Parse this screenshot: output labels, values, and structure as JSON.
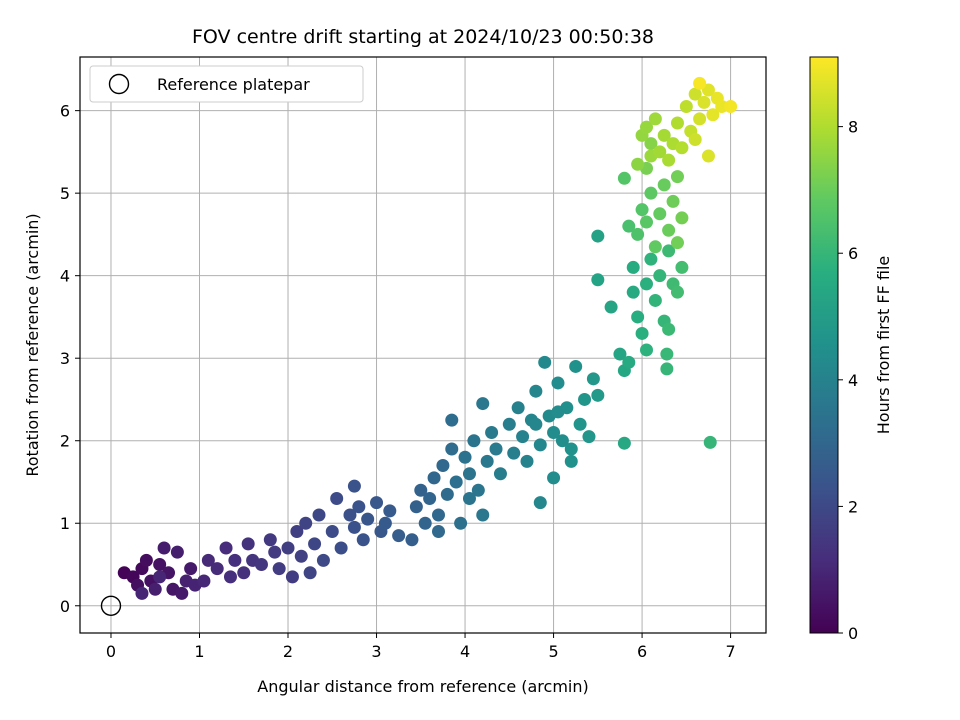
{
  "chart_data": {
    "type": "scatter",
    "title": "FOV centre drift starting at 2024/10/23 00:50:38",
    "xlabel": "Angular distance from reference (arcmin)",
    "ylabel": "Rotation from reference (arcmin)",
    "xlim": [
      -0.35,
      7.4
    ],
    "ylim": [
      -0.33,
      6.65
    ],
    "xticks": [
      "0",
      "1",
      "2",
      "3",
      "4",
      "5",
      "6",
      "7"
    ],
    "yticks": [
      "0",
      "1",
      "2",
      "3",
      "4",
      "5",
      "6"
    ],
    "grid": true,
    "legend": {
      "placement": "top-left",
      "entries": [
        "Reference platepar"
      ]
    },
    "reference_point": {
      "x": 0,
      "y": 0
    },
    "colorbar": {
      "label": "Hours from first FF file",
      "range": [
        0,
        9.1
      ],
      "ticks": [
        "0",
        "2",
        "4",
        "6",
        "8"
      ],
      "colormap": "viridis"
    },
    "points": [
      [
        0.15,
        0.4,
        0.05
      ],
      [
        0.25,
        0.35,
        0.12
      ],
      [
        0.35,
        0.45,
        0.2
      ],
      [
        0.4,
        0.55,
        0.3
      ],
      [
        0.3,
        0.25,
        0.35
      ],
      [
        0.45,
        0.3,
        0.4
      ],
      [
        0.55,
        0.5,
        0.45
      ],
      [
        0.65,
        0.4,
        0.5
      ],
      [
        0.7,
        0.2,
        0.55
      ],
      [
        0.8,
        0.15,
        0.6
      ],
      [
        0.9,
        0.45,
        0.65
      ],
      [
        0.6,
        0.7,
        0.7
      ],
      [
        0.75,
        0.65,
        0.75
      ],
      [
        0.5,
        0.2,
        0.8
      ],
      [
        0.85,
        0.3,
        0.85
      ],
      [
        0.95,
        0.25,
        0.9
      ],
      [
        0.35,
        0.15,
        0.92
      ],
      [
        0.55,
        0.35,
        0.95
      ],
      [
        1.05,
        0.3,
        1.0
      ],
      [
        1.1,
        0.55,
        1.05
      ],
      [
        1.2,
        0.45,
        1.1
      ],
      [
        1.3,
        0.7,
        1.15
      ],
      [
        1.4,
        0.55,
        1.2
      ],
      [
        1.5,
        0.4,
        1.25
      ],
      [
        1.55,
        0.75,
        1.3
      ],
      [
        1.6,
        0.55,
        1.35
      ],
      [
        1.7,
        0.5,
        1.4
      ],
      [
        1.8,
        0.8,
        1.5
      ],
      [
        1.85,
        0.65,
        1.55
      ],
      [
        1.9,
        0.45,
        1.6
      ],
      [
        2.0,
        0.7,
        1.65
      ],
      [
        2.1,
        0.9,
        1.7
      ],
      [
        2.15,
        0.6,
        1.75
      ],
      [
        2.2,
        1.0,
        1.8
      ],
      [
        2.25,
        0.4,
        1.85
      ],
      [
        2.3,
        0.75,
        1.9
      ],
      [
        2.35,
        1.1,
        1.95
      ],
      [
        2.4,
        0.55,
        2.0
      ],
      [
        2.5,
        0.9,
        2.05
      ],
      [
        2.55,
        1.3,
        2.1
      ],
      [
        2.6,
        0.7,
        2.15
      ],
      [
        2.7,
        1.1,
        2.2
      ],
      [
        2.75,
        0.95,
        2.25
      ],
      [
        2.8,
        1.2,
        2.3
      ],
      [
        2.85,
        0.8,
        2.35
      ],
      [
        2.9,
        1.05,
        2.4
      ],
      [
        3.0,
        1.25,
        2.45
      ],
      [
        3.05,
        0.9,
        2.5
      ],
      [
        3.1,
        1.0,
        2.55
      ],
      [
        3.15,
        1.15,
        2.6
      ],
      [
        3.25,
        0.85,
        2.65
      ],
      [
        1.35,
        0.35,
        1.2
      ],
      [
        2.05,
        0.35,
        1.6
      ],
      [
        2.75,
        1.45,
        2.3
      ],
      [
        3.4,
        0.8,
        2.7
      ],
      [
        3.45,
        1.2,
        2.8
      ],
      [
        3.5,
        1.4,
        2.85
      ],
      [
        3.55,
        1.0,
        2.9
      ],
      [
        3.6,
        1.3,
        2.95
      ],
      [
        3.65,
        1.55,
        3.0
      ],
      [
        3.7,
        1.1,
        3.05
      ],
      [
        3.75,
        1.7,
        3.1
      ],
      [
        3.8,
        1.35,
        3.15
      ],
      [
        3.85,
        1.9,
        3.2
      ],
      [
        3.85,
        2.25,
        3.25
      ],
      [
        3.9,
        1.5,
        3.3
      ],
      [
        3.95,
        1.0,
        3.35
      ],
      [
        4.0,
        1.8,
        3.4
      ],
      [
        4.05,
        1.6,
        3.45
      ],
      [
        4.1,
        2.0,
        3.5
      ],
      [
        4.15,
        1.4,
        3.55
      ],
      [
        4.2,
        2.45,
        3.6
      ],
      [
        4.25,
        1.75,
        3.65
      ],
      [
        4.3,
        2.1,
        3.7
      ],
      [
        4.35,
        1.9,
        3.75
      ],
      [
        4.4,
        1.6,
        3.8
      ],
      [
        4.5,
        2.2,
        3.85
      ],
      [
        4.55,
        1.85,
        3.9
      ],
      [
        4.6,
        2.4,
        3.95
      ],
      [
        4.2,
        1.1,
        3.6
      ],
      [
        3.7,
        0.9,
        3.1
      ],
      [
        4.05,
        1.3,
        3.5
      ],
      [
        4.65,
        2.05,
        4.0
      ],
      [
        4.7,
        1.75,
        4.05
      ],
      [
        4.75,
        2.25,
        4.1
      ],
      [
        4.8,
        2.6,
        4.15
      ],
      [
        4.85,
        1.95,
        4.2
      ],
      [
        4.85,
        1.25,
        4.2
      ],
      [
        4.9,
        2.95,
        4.25
      ],
      [
        4.95,
        2.3,
        4.3
      ],
      [
        5.0,
        2.1,
        4.35
      ],
      [
        5.0,
        1.55,
        4.35
      ],
      [
        5.05,
        2.7,
        4.4
      ],
      [
        5.1,
        2.0,
        4.45
      ],
      [
        5.15,
        2.4,
        4.5
      ],
      [
        5.2,
        1.9,
        4.55
      ],
      [
        5.2,
        1.75,
        4.55
      ],
      [
        5.25,
        2.9,
        4.6
      ],
      [
        5.3,
        2.2,
        4.65
      ],
      [
        5.35,
        2.5,
        4.7
      ],
      [
        5.4,
        2.05,
        4.75
      ],
      [
        5.45,
        2.75,
        4.8
      ],
      [
        5.5,
        2.55,
        4.85
      ],
      [
        4.8,
        2.2,
        4.15
      ],
      [
        5.05,
        2.35,
        4.4
      ],
      [
        5.5,
        4.48,
        5.2
      ],
      [
        5.5,
        3.95,
        5.25
      ],
      [
        5.65,
        3.62,
        5.3
      ],
      [
        5.75,
        3.05,
        5.35
      ],
      [
        5.8,
        2.85,
        5.4
      ],
      [
        5.8,
        1.97,
        5.45
      ],
      [
        5.85,
        2.95,
        5.5
      ],
      [
        5.9,
        3.8,
        5.55
      ],
      [
        5.9,
        4.1,
        5.6
      ],
      [
        5.95,
        3.5,
        5.65
      ],
      [
        6.0,
        3.3,
        5.7
      ],
      [
        6.05,
        3.9,
        5.75
      ],
      [
        6.05,
        3.1,
        5.8
      ],
      [
        6.1,
        4.2,
        5.85
      ],
      [
        6.15,
        3.7,
        5.9
      ],
      [
        6.2,
        4.0,
        5.95
      ],
      [
        6.25,
        3.45,
        6.0
      ],
      [
        6.28,
        3.05,
        6.05
      ],
      [
        6.3,
        3.35,
        6.1
      ],
      [
        6.3,
        4.3,
        6.15
      ],
      [
        6.35,
        3.9,
        6.2
      ],
      [
        6.4,
        3.8,
        6.25
      ],
      [
        6.45,
        4.1,
        6.3
      ],
      [
        6.77,
        1.98,
        6.0
      ],
      [
        6.28,
        2.87,
        6.0
      ],
      [
        5.85,
        4.6,
        6.4
      ],
      [
        5.8,
        5.18,
        6.6
      ],
      [
        5.95,
        4.5,
        6.5
      ],
      [
        6.0,
        4.8,
        6.6
      ],
      [
        6.05,
        4.65,
        6.7
      ],
      [
        6.1,
        5.0,
        6.8
      ],
      [
        6.15,
        4.35,
        6.85
      ],
      [
        6.2,
        4.75,
        6.9
      ],
      [
        6.25,
        5.1,
        6.95
      ],
      [
        6.3,
        4.55,
        7.0
      ],
      [
        6.35,
        4.9,
        7.05
      ],
      [
        6.4,
        5.2,
        7.1
      ],
      [
        6.4,
        4.4,
        7.1
      ],
      [
        6.45,
        4.7,
        7.15
      ],
      [
        6.05,
        5.3,
        7.2
      ],
      [
        6.1,
        5.6,
        7.4
      ],
      [
        5.95,
        5.35,
        7.5
      ],
      [
        6.0,
        5.7,
        7.6
      ],
      [
        6.05,
        5.8,
        7.65
      ],
      [
        6.1,
        5.45,
        7.7
      ],
      [
        6.15,
        5.9,
        7.75
      ],
      [
        6.2,
        5.5,
        7.8
      ],
      [
        6.25,
        5.7,
        7.85
      ],
      [
        6.3,
        5.4,
        7.9
      ],
      [
        6.35,
        5.6,
        7.95
      ],
      [
        6.4,
        5.85,
        8.0
      ],
      [
        6.45,
        5.55,
        8.05
      ],
      [
        6.5,
        6.05,
        8.2
      ],
      [
        6.55,
        5.75,
        8.3
      ],
      [
        6.6,
        6.2,
        8.4
      ],
      [
        6.65,
        5.9,
        8.5
      ],
      [
        6.7,
        6.1,
        8.6
      ],
      [
        6.75,
        6.25,
        8.7
      ],
      [
        6.8,
        5.95,
        8.75
      ],
      [
        6.85,
        6.15,
        8.8
      ],
      [
        6.9,
        6.05,
        8.85
      ],
      [
        7.0,
        6.05,
        8.95
      ],
      [
        6.65,
        6.33,
        9.0
      ],
      [
        6.75,
        5.45,
        8.6
      ],
      [
        6.6,
        5.65,
        8.4
      ]
    ]
  }
}
